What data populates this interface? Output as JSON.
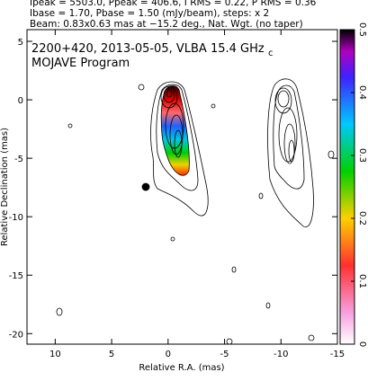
{
  "chart_data": {
    "type": "image",
    "header": [
      "Ipeak = 5503.0, Ppeak = 406.6, I RMS = 0.22, P RMS = 0.36",
      "Ibase = 1.70, Pbase = 1.50 (mJy/beam), steps: x 2",
      "Beam: 0.83x0.63 mas at −15.2 deg., Nat. Wgt. (no taper)"
    ],
    "title": "2200+420, 2013-05-05, VLBA 15.4 GHz",
    "title_sub": "c",
    "subtitle": "MOJAVE Program",
    "xlabel": "Relative R.A. (mas)",
    "ylabel": "Relative Declination (mas)",
    "xlim": [
      12.5,
      -15
    ],
    "xticks": [
      10,
      5,
      0,
      -5,
      -10,
      -15
    ],
    "ylim": [
      -20.9,
      6
    ],
    "yticks": [
      5,
      0,
      -5,
      -10,
      -15,
      -20
    ],
    "clim": [
      0,
      0.5
    ],
    "cticks": [
      0,
      0.1,
      0.2,
      0.3,
      0.4,
      0.5
    ]
  }
}
